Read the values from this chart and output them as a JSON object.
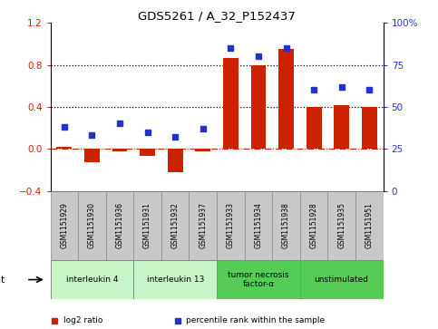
{
  "title": "GDS5261 / A_32_P152437",
  "samples": [
    "GSM1151929",
    "GSM1151930",
    "GSM1151936",
    "GSM1151931",
    "GSM1151932",
    "GSM1151937",
    "GSM1151933",
    "GSM1151934",
    "GSM1151938",
    "GSM1151928",
    "GSM1151935",
    "GSM1151951"
  ],
  "log2_ratio": [
    0.02,
    -0.13,
    -0.02,
    -0.07,
    -0.22,
    -0.02,
    0.87,
    0.8,
    0.95,
    0.4,
    0.42,
    0.4
  ],
  "percentile": [
    38,
    33,
    40,
    35,
    32,
    37,
    85,
    80,
    85,
    60,
    62,
    60
  ],
  "groups": [
    {
      "label": "interleukin 4",
      "start": 0,
      "end": 2,
      "color": "#c8f5c8"
    },
    {
      "label": "interleukin 13",
      "start": 3,
      "end": 5,
      "color": "#c8f5c8"
    },
    {
      "label": "tumor necrosis\nfactor-α",
      "start": 6,
      "end": 8,
      "color": "#55cc55"
    },
    {
      "label": "unstimulated",
      "start": 9,
      "end": 11,
      "color": "#55cc55"
    }
  ],
  "bar_color": "#cc2200",
  "dot_color": "#2233cc",
  "ylim_left": [
    -0.4,
    1.2
  ],
  "ylim_right": [
    0,
    100
  ],
  "yticks_left": [
    -0.4,
    0.0,
    0.4,
    0.8,
    1.2
  ],
  "yticks_right": [
    0,
    25,
    50,
    75,
    100
  ],
  "ytick_labels_right": [
    "0",
    "25",
    "50",
    "75",
    "100%"
  ],
  "hlines": [
    0.4,
    0.8
  ],
  "bar_width": 0.55,
  "sample_box_color": "#c8c8c8",
  "legend": [
    {
      "label": "log2 ratio",
      "color": "#cc2200"
    },
    {
      "label": "percentile rank within the sample",
      "color": "#2233cc"
    }
  ]
}
